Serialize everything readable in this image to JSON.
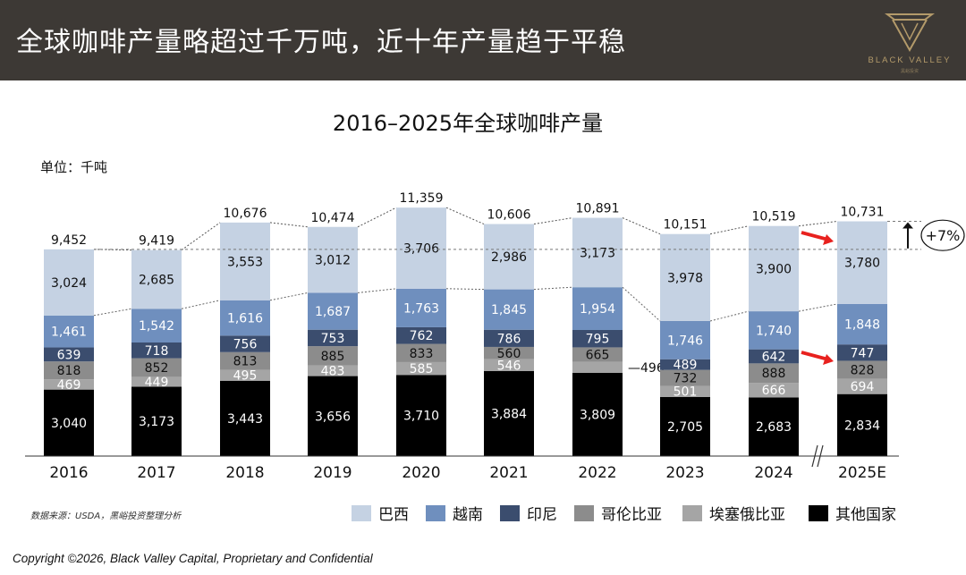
{
  "header": {
    "title": "全球咖啡产量略超过千万吨，近十年产量趋于平稳",
    "logo_text": "BLACK VALLEY",
    "logo_sub": "黑峪投资"
  },
  "footer": "Copyright ©2026, Black Valley Capital, Proprietary and Confidential",
  "colors": {
    "header_bg": "#3d3935",
    "brazil": "#c5d2e3",
    "vietnam": "#6f8fbe",
    "indonesia": "#3b4d6e",
    "colombia": "#8c8c8c",
    "ethiopia": "#a5a5a5",
    "others": "#000000",
    "arrow": "#e8211e",
    "logo_gold": "#b39a6a"
  },
  "chart_data": {
    "type": "bar",
    "stacked": true,
    "title": "2016–2025年全球咖啡产量",
    "unit_label": "单位：千吨",
    "source": "数据来源：USDA，黑峪投资整理分析",
    "categories": [
      "2016",
      "2017",
      "2018",
      "2019",
      "2020",
      "2021",
      "2022",
      "2023",
      "2024",
      "2025E"
    ],
    "series": [
      {
        "name": "其他国家",
        "color_key": "others",
        "values": [
          3040,
          3173,
          3443,
          3656,
          3710,
          3884,
          3809,
          2705,
          2683,
          2834
        ],
        "labels": [
          "3,040",
          "3,173",
          "3,443",
          "3,656",
          "3,710",
          "3,884",
          "3,809",
          "2,705",
          "2,683",
          "2,834"
        ]
      },
      {
        "name": "埃塞俄比亚",
        "color_key": "ethiopia",
        "values": [
          469,
          449,
          495,
          483,
          585,
          546,
          496,
          501,
          666,
          694
        ],
        "labels": [
          "469",
          "449",
          "495",
          "483",
          "585",
          "546",
          "496",
          "501",
          "666",
          "694"
        ]
      },
      {
        "name": "哥伦比亚",
        "color_key": "colombia",
        "values": [
          818,
          852,
          813,
          885,
          833,
          560,
          665,
          732,
          888,
          828
        ],
        "labels": [
          "818",
          "852",
          "813",
          "885",
          "833",
          "560",
          "665",
          "732",
          "888",
          "828"
        ]
      },
      {
        "name": "印尼",
        "color_key": "indonesia",
        "values": [
          639,
          718,
          756,
          753,
          762,
          786,
          795,
          489,
          642,
          747
        ],
        "labels": [
          "639",
          "718",
          "756",
          "753",
          "762",
          "786",
          "795",
          "489",
          "642",
          "747"
        ]
      },
      {
        "name": "越南",
        "color_key": "vietnam",
        "values": [
          1461,
          1542,
          1616,
          1687,
          1763,
          1845,
          1954,
          1746,
          1740,
          1848
        ],
        "labels": [
          "1,461",
          "1,542",
          "1,616",
          "1,687",
          "1,763",
          "1,845",
          "1,954",
          "1,746",
          "1,740",
          "1,848"
        ]
      },
      {
        "name": "巴西",
        "color_key": "brazil",
        "values": [
          3024,
          2685,
          3553,
          3012,
          3706,
          2986,
          3173,
          3978,
          3900,
          3780
        ],
        "labels": [
          "3,024",
          "2,685",
          "3,553",
          "3,012",
          "3,706",
          "2,986",
          "3,173",
          "3,978",
          "3,900",
          "3,780"
        ]
      }
    ],
    "totals": [
      9452,
      9419,
      10676,
      10474,
      11359,
      10606,
      10891,
      10151,
      10519,
      10731
    ],
    "total_labels": [
      "9,452",
      "9,419",
      "10,676",
      "10,474",
      "11,359",
      "10,606",
      "10,891",
      "10,151",
      "10,519",
      "10,731"
    ],
    "callout_labels": {
      "ethiopia_2022": "496"
    },
    "legend_order": [
      "巴西",
      "越南",
      "印尼",
      "哥伦比亚",
      "埃塞俄比亚",
      "其他国家"
    ],
    "growth_annotation": "+7%",
    "axis_break_between": [
      "2024",
      "2025E"
    ],
    "ylim": [
      0,
      12000
    ]
  }
}
